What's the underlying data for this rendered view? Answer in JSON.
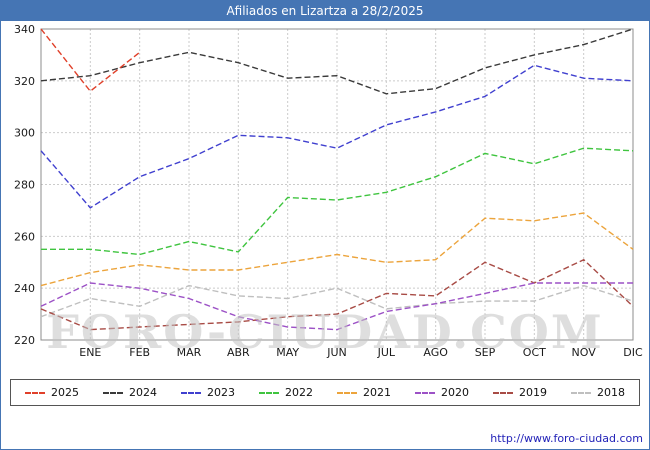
{
  "header": {
    "title": "Afiliados en Lizartza a 28/2/2025"
  },
  "watermark": "FORO-CIUDAD.COM",
  "footer": {
    "url": "http://www.foro-ciudad.com"
  },
  "colors": {
    "header_bg": "#4575b4",
    "frame_border": "#4575b4",
    "grid": "#cbcbcb",
    "footer_link": "#2323b8"
  },
  "chart_data": {
    "type": "line",
    "title": "Afiliados en Lizartza a 28/2/2025",
    "x_labels": [
      "ENE",
      "FEB",
      "MAR",
      "ABR",
      "MAY",
      "JUN",
      "JUL",
      "AGO",
      "SEP",
      "OCT",
      "NOV",
      "DIC"
    ],
    "x_note": "each series has 13 points: index 0 is the unlabeled left-edge start, indices 1-12 fall on the ENE-DIC ticks",
    "ylim": [
      220,
      340
    ],
    "yticks": [
      220,
      240,
      260,
      280,
      300,
      320,
      340
    ],
    "grid": true,
    "legend_position": "bottom",
    "series": [
      {
        "name": "2025",
        "color": "#e0402a",
        "values": [
          340,
          316,
          331,
          null,
          null,
          null,
          null,
          null,
          null,
          null,
          null,
          null,
          null
        ]
      },
      {
        "name": "2024",
        "color": "#3a3a3a",
        "values": [
          320,
          322,
          327,
          331,
          327,
          321,
          322,
          315,
          317,
          325,
          330,
          334,
          340
        ]
      },
      {
        "name": "2023",
        "color": "#4040cf",
        "values": [
          293,
          271,
          283,
          290,
          299,
          298,
          294,
          303,
          308,
          314,
          326,
          321,
          320
        ]
      },
      {
        "name": "2022",
        "color": "#3fc43f",
        "values": [
          255,
          255,
          253,
          258,
          254,
          275,
          274,
          277,
          283,
          292,
          288,
          294,
          293
        ]
      },
      {
        "name": "2021",
        "color": "#eca43c",
        "values": [
          241,
          246,
          249,
          247,
          247,
          250,
          253,
          250,
          251,
          267,
          266,
          269,
          255
        ]
      },
      {
        "name": "2020",
        "color": "#9c51c6",
        "values": [
          233,
          242,
          240,
          236,
          229,
          225,
          224,
          231,
          234,
          238,
          242,
          242,
          242
        ]
      },
      {
        "name": "2019",
        "color": "#a84b45",
        "values": [
          232,
          224,
          225,
          226,
          227,
          229,
          230,
          238,
          237,
          250,
          242,
          251,
          233
        ]
      },
      {
        "name": "2018",
        "color": "#bfbfbf",
        "values": [
          229,
          236,
          233,
          241,
          237,
          236,
          240,
          232,
          234,
          235,
          235,
          241,
          235
        ]
      }
    ]
  }
}
